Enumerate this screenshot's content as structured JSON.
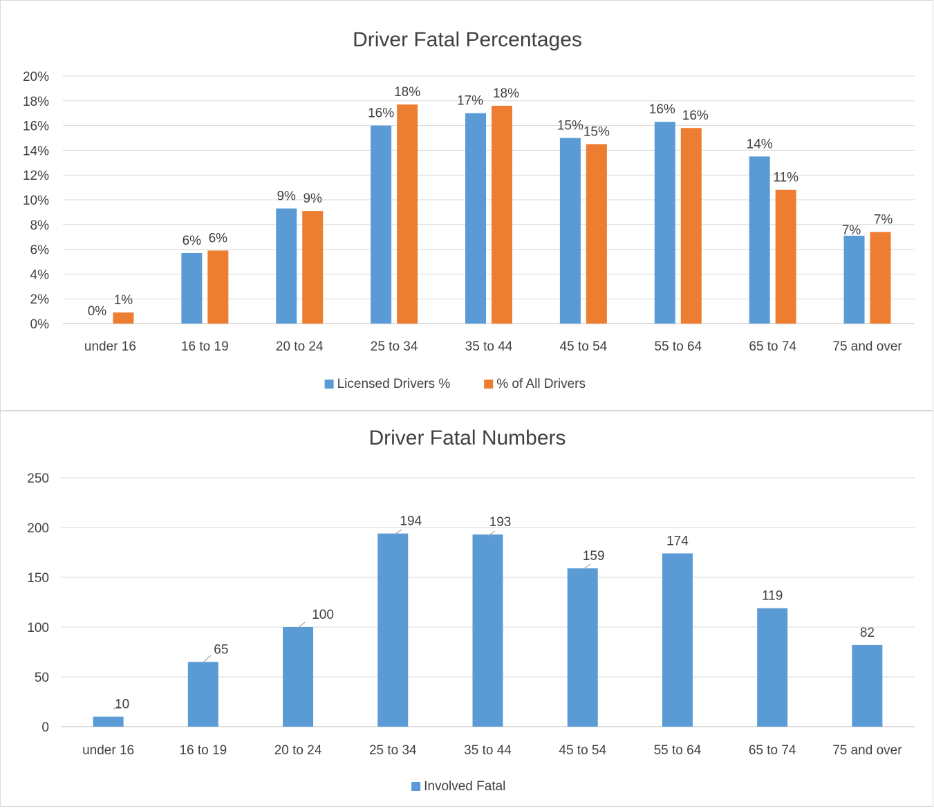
{
  "charts": [
    {
      "chart_data": {
        "type": "bar",
        "title": "Driver Fatal Percentages",
        "categories": [
          "under 16",
          "16 to 19",
          "20 to 24",
          "25 to 34",
          "35 to 44",
          "45 to 54",
          "55 to 64",
          "65 to 74",
          "75 and over"
        ],
        "series": [
          {
            "name": "Licensed Drivers %",
            "color": "#5b9bd5",
            "values": [
              0.0,
              5.7,
              9.3,
              16.0,
              17.0,
              15.0,
              16.3,
              13.5,
              7.1
            ],
            "labels": [
              "0%",
              "6%",
              "9%",
              "16%",
              "17%",
              "15%",
              "16%",
              "14%",
              "7%"
            ]
          },
          {
            "name": "% of All Drivers",
            "color": "#ed7d31",
            "values": [
              0.9,
              5.9,
              9.1,
              17.7,
              17.6,
              14.5,
              15.8,
              10.8,
              7.4
            ],
            "labels": [
              "1%",
              "6%",
              "9%",
              "18%",
              "18%",
              "15%",
              "16%",
              "11%",
              "7%"
            ]
          }
        ],
        "ylim": [
          0,
          20
        ],
        "yticks": [
          "0%",
          "2%",
          "4%",
          "6%",
          "8%",
          "10%",
          "12%",
          "14%",
          "16%",
          "18%",
          "20%"
        ],
        "grid": true,
        "legend": "bottom"
      }
    },
    {
      "chart_data": {
        "type": "bar",
        "title": "Driver Fatal Numbers",
        "categories": [
          "under 16",
          "16 to 19",
          "20 to 24",
          "25 to 34",
          "35 to 44",
          "45 to 54",
          "55 to 64",
          "65 to 74",
          "75 and over"
        ],
        "series": [
          {
            "name": "Involved Fatal",
            "color": "#5b9bd5",
            "values": [
              10,
              65,
              100,
              194,
              193,
              159,
              174,
              119,
              82
            ],
            "labels": [
              "10",
              "65",
              "100",
              "194",
              "193",
              "159",
              "174",
              "119",
              "82"
            ]
          }
        ],
        "ylim": [
          0,
          250
        ],
        "yticks": [
          "0",
          "50",
          "100",
          "150",
          "200",
          "250"
        ],
        "grid": true,
        "legend": "bottom"
      }
    }
  ]
}
